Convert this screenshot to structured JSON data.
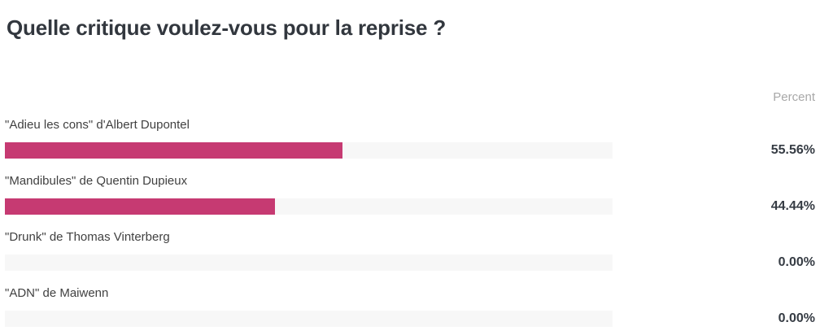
{
  "page": {
    "title": "Quelle critique voulez-vous pour la reprise ?",
    "percent_header": "Percent"
  },
  "chart_data": {
    "type": "bar",
    "orientation": "horizontal",
    "title": "Quelle critique voulez-vous pour la reprise ?",
    "categories": [
      "\"Adieu les cons\" d'Albert Dupontel",
      "\"Mandibules\" de Quentin Dupieux",
      "\"Drunk\" de Thomas Vinterberg",
      "\"ADN\" de Maiwenn"
    ],
    "values": [
      55.56,
      44.44,
      0.0,
      0.0
    ],
    "value_labels": [
      "55.56%",
      "44.44%",
      "0.00%",
      "0.00%"
    ],
    "value_column_header": "Percent",
    "xlim": [
      0,
      100
    ],
    "grid": false,
    "legend_position": "none",
    "bar_color": "#c63a72",
    "track_color": "#f7f7f7",
    "title_color": "#32373e",
    "label_color": "#414141",
    "value_color": "#363c44",
    "header_color": "#a8a8a8"
  }
}
